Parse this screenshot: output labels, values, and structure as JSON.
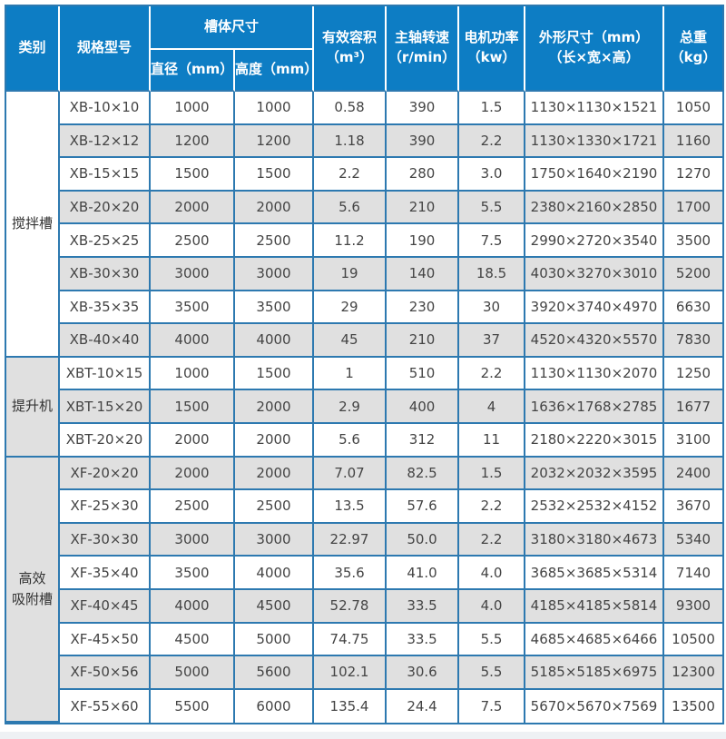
{
  "colors": {
    "header_bg": "#0d7dc4",
    "grid_border": "#2d79b0",
    "stripe_gray": "#e0e0e0",
    "header_text": "#ffffff",
    "body_text": "#444444"
  },
  "header": {
    "category": "类别",
    "model": "规格型号",
    "tank_size_group": "槽体尺寸",
    "diameter": "直径（mm）",
    "height": "高度（mm）",
    "volume_line1": "有效容积",
    "volume_line2": "（m³）",
    "speed_line1": "主轴转速",
    "speed_line2": "（r/min）",
    "power_line1": "电机功率",
    "power_line2": "（kw）",
    "dims_line1": "外形尺寸（mm）",
    "dims_line2": "（长×宽×高）",
    "weight_line1": "总重",
    "weight_line2": "（kg）"
  },
  "column_keys": [
    "model",
    "diameter",
    "height",
    "volume",
    "speed",
    "power",
    "dims",
    "weight"
  ],
  "groups": [
    {
      "category": "搅拌槽",
      "category_lines": [
        "搅拌槽"
      ],
      "rows": [
        [
          "XB-10×10",
          "1000",
          "1000",
          "0.58",
          "390",
          "1.5",
          "1130×1130×1521",
          "1050"
        ],
        [
          "XB-12×12",
          "1200",
          "1200",
          "1.18",
          "390",
          "2.2",
          "1130×1330×1721",
          "1160"
        ],
        [
          "XB-15×15",
          "1500",
          "1500",
          "2.2",
          "280",
          "3.0",
          "1750×1640×2190",
          "1270"
        ],
        [
          "XB-20×20",
          "2000",
          "2000",
          "5.6",
          "210",
          "5.5",
          "2380×2160×2850",
          "1700"
        ],
        [
          "XB-25×25",
          "2500",
          "2500",
          "11.2",
          "190",
          "7.5",
          "2990×2720×3540",
          "3500"
        ],
        [
          "XB-30×30",
          "3000",
          "3000",
          "19",
          "140",
          "18.5",
          "4030×3270×3010",
          "5200"
        ],
        [
          "XB-35×35",
          "3500",
          "3500",
          "29",
          "230",
          "30",
          "3920×3740×4970",
          "6630"
        ],
        [
          "XB-40×40",
          "4000",
          "4000",
          "45",
          "210",
          "37",
          "4520×4320×5570",
          "7830"
        ]
      ]
    },
    {
      "category": "提升机",
      "category_lines": [
        "提升机"
      ],
      "rows": [
        [
          "XBT-10×15",
          "1000",
          "1500",
          "1",
          "510",
          "2.2",
          "1130×1130×2070",
          "1250"
        ],
        [
          "XBT-15×20",
          "1500",
          "2000",
          "2.9",
          "400",
          "4",
          "1636×1768×2785",
          "1677"
        ],
        [
          "XBT-20×20",
          "2000",
          "2000",
          "5.6",
          "312",
          "11",
          "2180×2220×3015",
          "3100"
        ]
      ]
    },
    {
      "category": "高效吸附槽",
      "category_lines": [
        "高效",
        "吸附槽"
      ],
      "rows": [
        [
          "XF-20×20",
          "2000",
          "2000",
          "7.07",
          "82.5",
          "1.5",
          "2032×2032×3595",
          "2400"
        ],
        [
          "XF-25×30",
          "2500",
          "2500",
          "13.5",
          "57.6",
          "2.2",
          "2532×2532×4152",
          "3670"
        ],
        [
          "XF-30×30",
          "3000",
          "3000",
          "22.97",
          "50.0",
          "2.2",
          "3180×3180×4673",
          "5340"
        ],
        [
          "XF-35×40",
          "3500",
          "4000",
          "35.6",
          "41.0",
          "4.0",
          "3685×3685×5314",
          "7140"
        ],
        [
          "XF-40×45",
          "4000",
          "4500",
          "52.78",
          "33.5",
          "4.0",
          "4185×4185×5814",
          "9300"
        ],
        [
          "XF-45×50",
          "4500",
          "5000",
          "74.75",
          "33.5",
          "5.5",
          "4685×4685×6466",
          "10500"
        ],
        [
          "XF-50×56",
          "5000",
          "5600",
          "102.1",
          "30.6",
          "5.5",
          "5185×5185×6975",
          "12300"
        ],
        [
          "XF-55×60",
          "5500",
          "6000",
          "135.4",
          "24.4",
          "7.5",
          "5670×5670×7569",
          "13500"
        ]
      ]
    }
  ]
}
